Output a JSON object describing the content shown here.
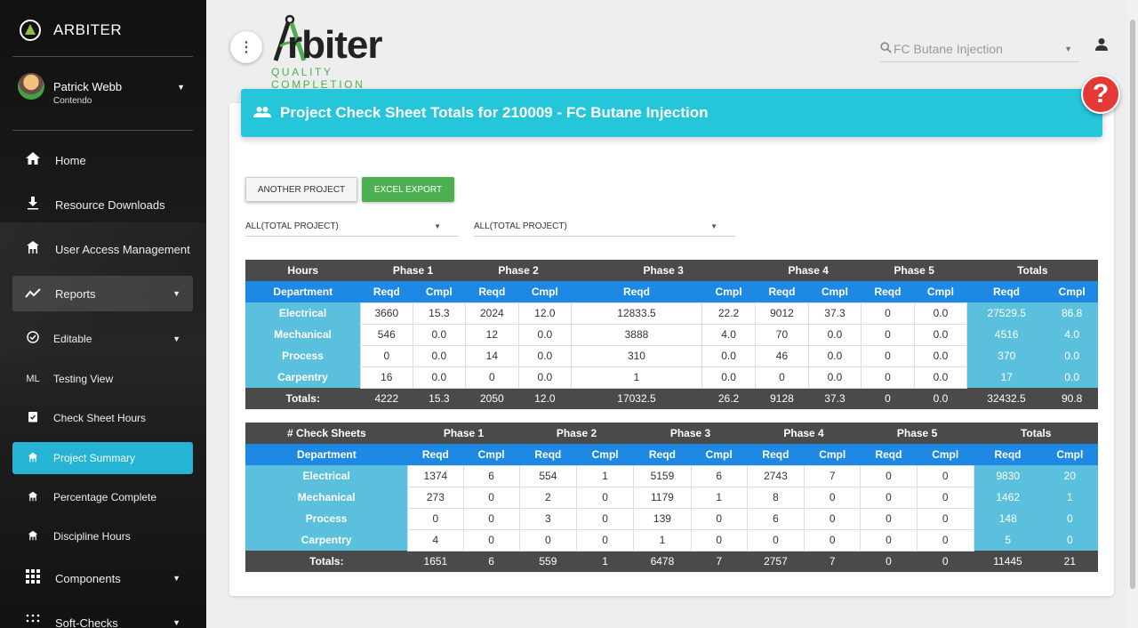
{
  "sidebar": {
    "brand": "ARBITER",
    "user": {
      "name": "Patrick Webb",
      "org": "Contendo"
    },
    "items": [
      {
        "label": "Home",
        "icon": "home-icon"
      },
      {
        "label": "Resource Downloads",
        "icon": "download-icon"
      },
      {
        "label": "User Access Management",
        "icon": "network-icon"
      },
      {
        "label": "Reports",
        "icon": "trending-icon"
      },
      {
        "label": "Editable",
        "icon": "check-circle-icon"
      },
      {
        "label": "Testing View",
        "icon": "ML"
      },
      {
        "label": "Check Sheet Hours",
        "icon": "clipboard-icon"
      },
      {
        "label": "Project Summary",
        "icon": "network-icon"
      },
      {
        "label": "Percentage Complete",
        "icon": "network-icon"
      },
      {
        "label": "Discipline Hours",
        "icon": "network-icon"
      },
      {
        "label": "Components",
        "icon": "grid-icon"
      },
      {
        "label": "Soft-Checks",
        "icon": "dots-icon"
      }
    ]
  },
  "header": {
    "logo_text": "rbiter",
    "logo_sub": "QUALITY COMPLETION",
    "search_value": "FC Butane Injection"
  },
  "banner": {
    "title": "Project Check Sheet Totals for 210009 - FC Butane Injection"
  },
  "buttons": {
    "another": "ANOTHER PROJECT",
    "excel": "EXCEL EXPORT"
  },
  "selects": {
    "first": "ALL(TOTAL PROJECT)",
    "second": "ALL(TOTAL PROJECT)"
  },
  "hours_table": {
    "corner": "Hours",
    "phases": [
      "Phase 1",
      "Phase 2",
      "Phase 3",
      "Phase 4",
      "Phase 5"
    ],
    "totals": "Totals",
    "dept_header": "Department",
    "reqd": "Reqd",
    "cmpl": "Cmpl",
    "rows": [
      {
        "dept": "Electrical",
        "vals": [
          "3660",
          "15.3",
          "2024",
          "12.0",
          "12833.5",
          "22.2",
          "9012",
          "37.3",
          "0",
          "0.0"
        ],
        "tot": [
          "27529.5",
          "86.8"
        ]
      },
      {
        "dept": "Mechanical",
        "vals": [
          "546",
          "0.0",
          "12",
          "0.0",
          "3888",
          "4.0",
          "70",
          "0.0",
          "0",
          "0.0"
        ],
        "tot": [
          "4516",
          "4.0"
        ]
      },
      {
        "dept": "Process",
        "vals": [
          "0",
          "0.0",
          "14",
          "0.0",
          "310",
          "0.0",
          "46",
          "0.0",
          "0",
          "0.0"
        ],
        "tot": [
          "370",
          "0.0"
        ]
      },
      {
        "dept": "Carpentry",
        "vals": [
          "16",
          "0.0",
          "0",
          "0.0",
          "1",
          "0.0",
          "0",
          "0.0",
          "0",
          "0.0"
        ],
        "tot": [
          "17",
          "0.0"
        ]
      }
    ],
    "footer": {
      "label": "Totals:",
      "vals": [
        "4222",
        "15.3",
        "2050",
        "12.0",
        "17032.5",
        "26.2",
        "9128",
        "37.3",
        "0",
        "0.0",
        "32432.5",
        "90.8"
      ]
    }
  },
  "sheets_table": {
    "corner": "# Check Sheets",
    "phases": [
      "Phase 1",
      "Phase 2",
      "Phase 3",
      "Phase 4",
      "Phase 5"
    ],
    "totals": "Totals",
    "dept_header": "Department",
    "reqd": "Reqd",
    "cmpl": "Cmpl",
    "rows": [
      {
        "dept": "Electrical",
        "vals": [
          "1374",
          "6",
          "554",
          "1",
          "5159",
          "6",
          "2743",
          "7",
          "0",
          "0"
        ],
        "tot": [
          "9830",
          "20"
        ]
      },
      {
        "dept": "Mechanical",
        "vals": [
          "273",
          "0",
          "2",
          "0",
          "1179",
          "1",
          "8",
          "0",
          "0",
          "0"
        ],
        "tot": [
          "1462",
          "1"
        ]
      },
      {
        "dept": "Process",
        "vals": [
          "0",
          "0",
          "3",
          "0",
          "139",
          "0",
          "6",
          "0",
          "0",
          "0"
        ],
        "tot": [
          "148",
          "0"
        ]
      },
      {
        "dept": "Carpentry",
        "vals": [
          "4",
          "0",
          "0",
          "0",
          "1",
          "0",
          "0",
          "0",
          "0",
          "0"
        ],
        "tot": [
          "5",
          "0"
        ]
      }
    ],
    "footer": {
      "label": "Totals:",
      "vals": [
        "1651",
        "6",
        "559",
        "1",
        "6478",
        "7",
        "2757",
        "7",
        "0",
        "0",
        "11445",
        "21"
      ]
    }
  }
}
